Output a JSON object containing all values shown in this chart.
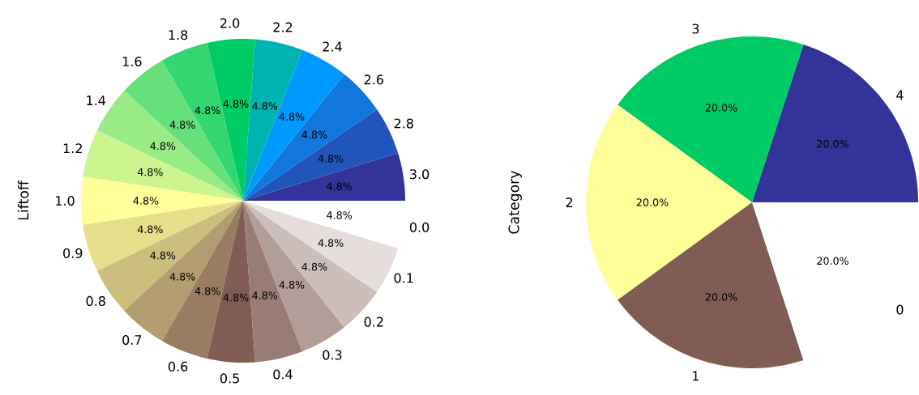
{
  "chart_data": [
    {
      "type": "pie",
      "ylabel": "Liftoff",
      "categories": [
        "3.0",
        "2.8",
        "2.6",
        "2.4",
        "2.2",
        "2.0",
        "1.8",
        "1.6",
        "1.4",
        "1.2",
        "1.0",
        "0.9",
        "0.8",
        "0.7",
        "0.6",
        "0.5",
        "0.4",
        "0.3",
        "0.2",
        "0.1",
        "0.0"
      ],
      "values": [
        4.762,
        4.762,
        4.762,
        4.762,
        4.762,
        4.762,
        4.762,
        4.762,
        4.762,
        4.762,
        4.762,
        4.762,
        4.762,
        4.762,
        4.762,
        4.762,
        4.762,
        4.762,
        4.762,
        4.762,
        4.762
      ],
      "value_labels": [
        "4.8%",
        "4.8%",
        "4.8%",
        "4.8%",
        "4.8%",
        "4.8%",
        "4.8%",
        "4.8%",
        "4.8%",
        "4.8%",
        "4.8%",
        "4.8%",
        "4.8%",
        "4.8%",
        "4.8%",
        "4.8%",
        "4.8%",
        "4.8%",
        "4.8%",
        "4.8%",
        "4.8%"
      ],
      "colors": [
        "#333399",
        "#2255bb",
        "#1177dd",
        "#0099ff",
        "#00b3b3",
        "#00cc66",
        "#33d670",
        "#66e07a",
        "#99eb85",
        "#ccf58f",
        "#ffff99",
        "#e6de8b",
        "#ccbe7d",
        "#b39d70",
        "#997c62",
        "#805c54",
        "#997c76",
        "#b39d98",
        "#ccbebb",
        "#e6dedd",
        "#ffffff"
      ]
    },
    {
      "type": "pie",
      "ylabel": "Category",
      "categories": [
        "4",
        "3",
        "2",
        "1",
        "0"
      ],
      "values": [
        20,
        20,
        20,
        20,
        20
      ],
      "value_labels": [
        "20.0%",
        "20.0%",
        "20.0%",
        "20.0%",
        "20.0%"
      ],
      "colors": [
        "#333399",
        "#00cc66",
        "#ffff99",
        "#805c54",
        "#ffffff"
      ]
    }
  ]
}
